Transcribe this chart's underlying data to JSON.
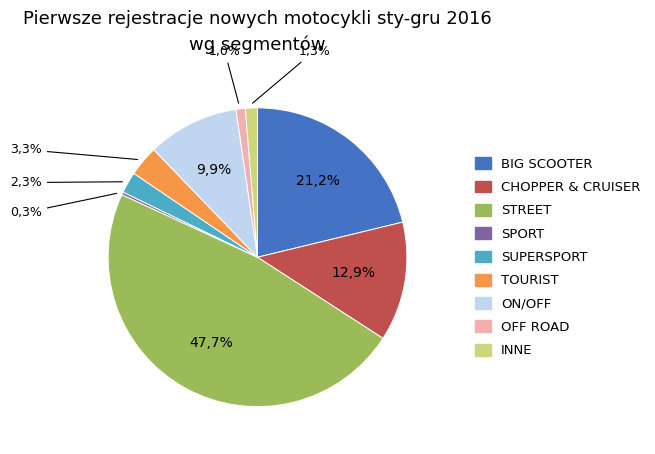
{
  "title": "Pierwsze rejestracje nowych motocykli sty-gru 2016\nwg segmentów",
  "segments": [
    "BIG SCOOTER",
    "CHOPPER & CRUISER",
    "STREET",
    "SPORT",
    "SUPERSPORT",
    "TOURIST",
    "ON/OFF",
    "OFF ROAD",
    "INNE"
  ],
  "values": [
    21.2,
    12.9,
    47.7,
    0.3,
    2.3,
    3.3,
    9.9,
    1.0,
    1.3
  ],
  "colors": [
    "#4472C4",
    "#C0504D",
    "#9BBB59",
    "#8064A2",
    "#4BACC6",
    "#F79646",
    "#C0D5F0",
    "#F2AFAD",
    "#CDD67A"
  ],
  "title_fontsize": 13,
  "legend_fontsize": 9.5
}
